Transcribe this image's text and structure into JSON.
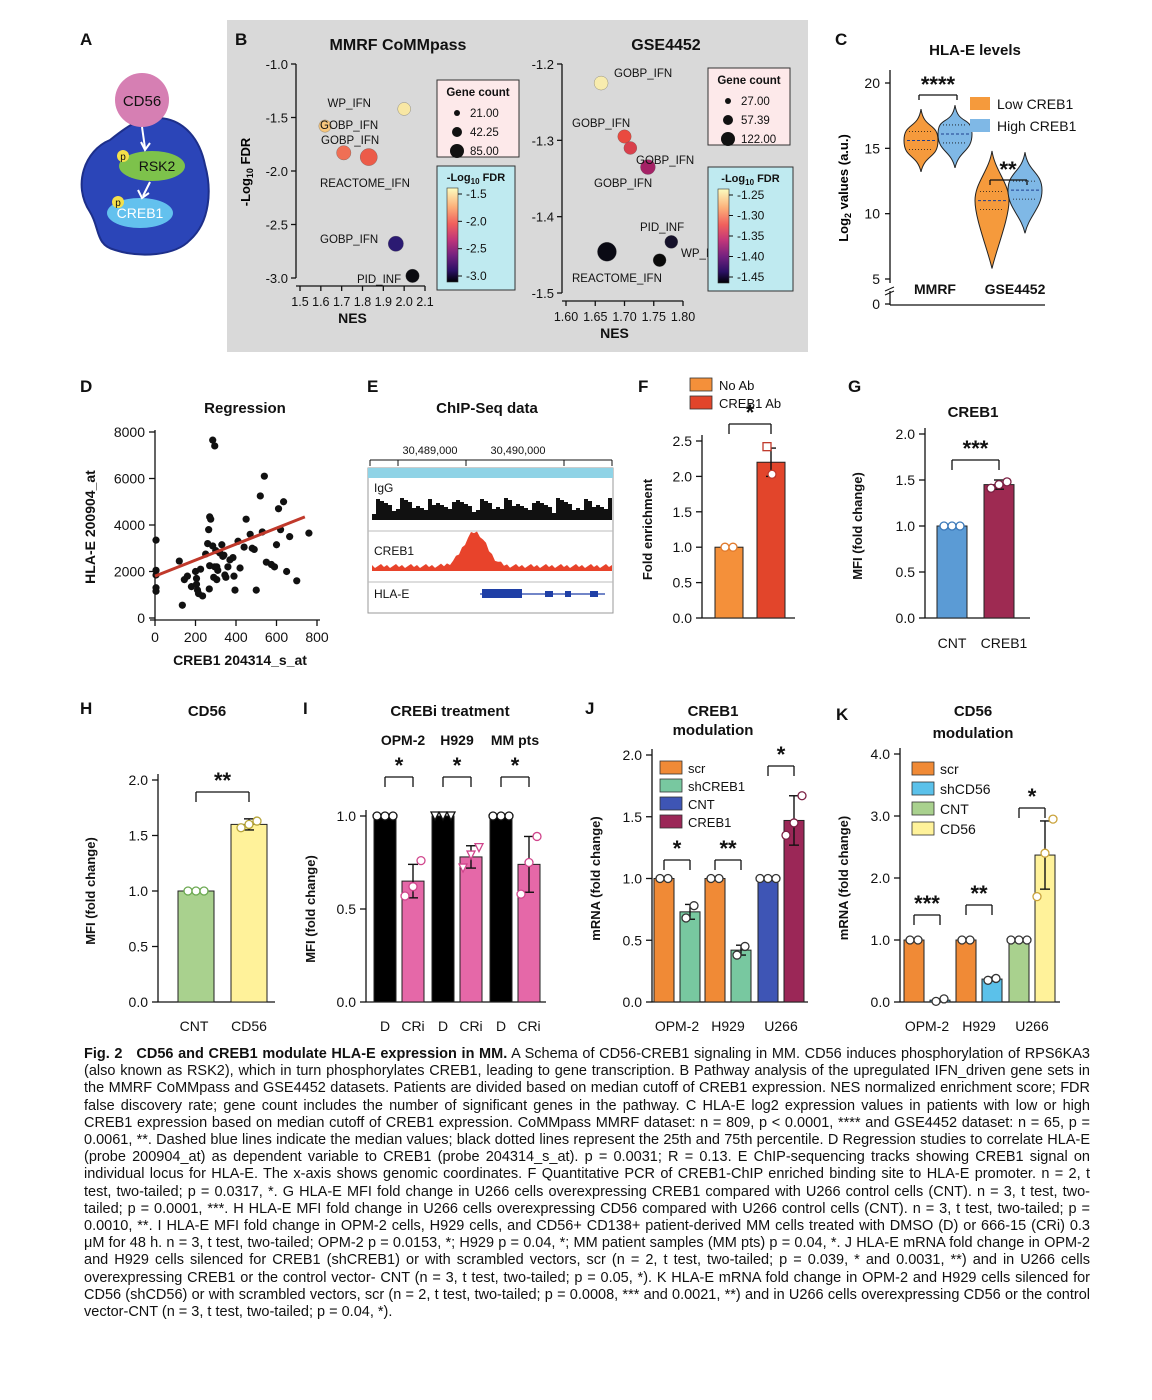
{
  "panels": {
    "A": {
      "label": "A",
      "nodes": [
        "CD56",
        "RSK2",
        "CREB1"
      ],
      "phospho": "p"
    },
    "B": {
      "label": "B",
      "left_title": "MMRF CoMMpass",
      "right_title": "GSE4452",
      "xlabel": "NES",
      "ylabel": "-Log10 FDR",
      "size_legend_title": "Gene count",
      "left_sizes": [
        "21.00",
        "42.25",
        "85.00"
      ],
      "right_sizes": [
        "27.00",
        "57.39",
        "122.00"
      ],
      "color_legend_title": "-Log10 FDR",
      "left_color_ticks": [
        "-1.5",
        "-2.0",
        "-2.5",
        "-3.0"
      ],
      "right_color_ticks": [
        "-1.25",
        "-1.30",
        "-1.35",
        "-1.40",
        "-1.45"
      ]
    },
    "C": {
      "label": "C",
      "title": "HLA-E levels"
    },
    "D": {
      "label": "D",
      "title": "Regression"
    },
    "E": {
      "label": "E",
      "title": "ChIP-Seq data",
      "coords": [
        "30,489,000",
        "30,490,000"
      ],
      "tracks": [
        "IgG",
        "CREB1",
        "HLA-E"
      ]
    },
    "F": {
      "label": "F"
    },
    "G": {
      "label": "G",
      "title": "CREB1"
    },
    "H": {
      "label": "H",
      "title": "CD56"
    },
    "I": {
      "label": "I",
      "title": "CREBi treatment"
    },
    "J": {
      "label": "J",
      "title": [
        "CREB1",
        "modulation"
      ]
    },
    "K": {
      "label": "K",
      "title": [
        "CD56",
        "modulation"
      ]
    }
  },
  "chart_data": [
    {
      "panel": "B-left",
      "type": "scatter",
      "title": "MMRF CoMMpass",
      "xlabel": "NES",
      "ylabel": "-Log10 FDR",
      "xlim": [
        1.5,
        2.1
      ],
      "ylim": [
        -3.0,
        -1.0
      ],
      "xticks": [
        "1.5",
        "1.6",
        "1.7",
        "1.8",
        "1.9",
        "2.0",
        "2.1"
      ],
      "yticks": [
        "-1.0",
        "-1.5",
        "-2.0",
        "-2.5",
        "-3.0"
      ],
      "points": [
        {
          "label": "WP_IFN",
          "x": 2.0,
          "y": -1.42,
          "size": 30,
          "fdr": -1.45,
          "color": "#f8e7a4"
        },
        {
          "label": "GOBP_IFN",
          "x": 1.62,
          "y": -1.58,
          "size": 25,
          "fdr": -1.55,
          "color": "#f7c67c"
        },
        {
          "label": "GOBP_IFN",
          "x": 1.71,
          "y": -1.83,
          "size": 45,
          "fdr": -1.8,
          "color": "#ef6f55"
        },
        {
          "label": "REACTOME_IFN",
          "x": 1.83,
          "y": -1.87,
          "size": 80,
          "fdr": -1.85,
          "color": "#ec5b49"
        },
        {
          "label": "GOBP_IFN",
          "x": 1.96,
          "y": -2.68,
          "size": 55,
          "fdr": -2.7,
          "color": "#2b1a72"
        },
        {
          "label": "PID_INF",
          "x": 2.04,
          "y": -2.98,
          "size": 35,
          "fdr": -3.0,
          "color": "#0a0a10"
        }
      ]
    },
    {
      "panel": "B-right",
      "type": "scatter",
      "title": "GSE4452",
      "xlabel": "NES",
      "ylabel": "-Log10 FDR",
      "xlim": [
        1.6,
        1.8
      ],
      "ylim": [
        -1.5,
        -1.2
      ],
      "xticks": [
        "1.60",
        "1.65",
        "1.70",
        "1.75",
        "1.80"
      ],
      "yticks": [
        "-1.2",
        "-1.3",
        "-1.4",
        "-1.5"
      ],
      "points": [
        {
          "label": "GOBP_IFN",
          "x": 1.66,
          "y": -1.225,
          "size": 40,
          "fdr": -1.22,
          "color": "#f8ecae"
        },
        {
          "label": "GOBP_IFN",
          "x": 1.7,
          "y": -1.295,
          "size": 35,
          "fdr": -1.29,
          "color": "#ea4a3f"
        },
        {
          "label": "GOBP_IFN",
          "x": 1.71,
          "y": -1.31,
          "size": 30,
          "fdr": -1.31,
          "color": "#d9404c"
        },
        {
          "label": "GOBP_IFN",
          "x": 1.74,
          "y": -1.335,
          "size": 50,
          "fdr": -1.34,
          "color": "#a52266"
        },
        {
          "label": "PID_INF",
          "x": 1.78,
          "y": -1.433,
          "size": 30,
          "fdr": -1.44,
          "color": "#15112a"
        },
        {
          "label": "WP_IFN",
          "x": 1.67,
          "y": -1.446,
          "size": 110,
          "fdr": -1.45,
          "color": "#0a0a14"
        },
        {
          "label": "REACTOME_IFN",
          "x": 1.76,
          "y": -1.457,
          "size": 30,
          "fdr": -1.45,
          "color": "#0a0a0a"
        }
      ]
    },
    {
      "panel": "C",
      "type": "violin",
      "title": "HLA-E levels",
      "ylabel": "Log2 values (a.u.)",
      "yticks": [
        "0",
        "5",
        "10",
        "15",
        "20"
      ],
      "categories": [
        "MMRF",
        "GSE4452"
      ],
      "series": [
        {
          "name": "Low CREB1",
          "color": "#f59a3c",
          "medians": [
            15.6,
            11.0
          ]
        },
        {
          "name": "High CREB1",
          "color": "#7fb8e6",
          "medians": [
            16.1,
            11.8
          ]
        }
      ],
      "annotations": [
        "****",
        "**"
      ]
    },
    {
      "panel": "D",
      "type": "scatter",
      "title": "Regression",
      "xlabel": "CREB1 204314_s_at",
      "ylabel": "HLA-E 200904_at",
      "xlim": [
        0,
        800
      ],
      "ylim": [
        0,
        8000
      ],
      "xticks": [
        "0",
        "200",
        "400",
        "600",
        "800"
      ],
      "yticks": [
        "0",
        "2000",
        "4000",
        "6000",
        "8000"
      ],
      "fit_line": {
        "x": [
          0,
          740
        ],
        "y": [
          1800,
          4350
        ]
      },
      "points": [
        [
          5,
          3350
        ],
        [
          5,
          2050
        ],
        [
          5,
          1850
        ],
        [
          5,
          1300
        ],
        [
          5,
          1150
        ],
        [
          120,
          2450
        ],
        [
          145,
          1650
        ],
        [
          160,
          1800
        ],
        [
          180,
          1350
        ],
        [
          200,
          2000
        ],
        [
          205,
          1700
        ],
        [
          205,
          1450
        ],
        [
          210,
          1200
        ],
        [
          225,
          2100
        ],
        [
          235,
          950
        ],
        [
          250,
          2750
        ],
        [
          260,
          3200
        ],
        [
          265,
          3800
        ],
        [
          268,
          1250
        ],
        [
          270,
          4350
        ],
        [
          270,
          2250
        ],
        [
          275,
          4250
        ],
        [
          285,
          3100
        ],
        [
          290,
          1750
        ],
        [
          295,
          2200
        ],
        [
          300,
          2900
        ],
        [
          305,
          1650
        ],
        [
          305,
          2200
        ],
        [
          310,
          2050
        ],
        [
          320,
          2800
        ],
        [
          330,
          3150
        ],
        [
          335,
          2650
        ],
        [
          340,
          2700
        ],
        [
          345,
          1850
        ],
        [
          350,
          1750
        ],
        [
          360,
          2200
        ],
        [
          370,
          2500
        ],
        [
          385,
          2600
        ],
        [
          390,
          1800
        ],
        [
          395,
          1200
        ],
        [
          410,
          3300
        ],
        [
          420,
          2150
        ],
        [
          440,
          3050
        ],
        [
          450,
          4250
        ],
        [
          470,
          3600
        ],
        [
          480,
          3000
        ],
        [
          490,
          2950
        ],
        [
          500,
          1200
        ],
        [
          520,
          5250
        ],
        [
          530,
          3700
        ],
        [
          540,
          6100
        ],
        [
          550,
          2400
        ],
        [
          575,
          2300
        ],
        [
          590,
          2200
        ],
        [
          600,
          3150
        ],
        [
          610,
          4700
        ],
        [
          620,
          3800
        ],
        [
          635,
          5000
        ],
        [
          650,
          2000
        ],
        [
          665,
          3500
        ],
        [
          700,
          1600
        ],
        [
          760,
          3650
        ],
        [
          135,
          550
        ],
        [
          215,
          1050
        ],
        [
          285,
          7650
        ],
        [
          295,
          7400
        ]
      ]
    },
    {
      "panel": "F",
      "type": "bar",
      "ylabel": "Fold enrichment",
      "ylim": [
        0,
        2.5
      ],
      "yticks": [
        "0.0",
        "0.5",
        "1.0",
        "1.5",
        "2.0",
        "2.5"
      ],
      "categories": [
        "No Ab",
        "CREB1 Ab"
      ],
      "values": [
        1.0,
        2.2
      ],
      "errors": [
        0.0,
        0.2
      ],
      "colors": [
        "#f4903a",
        "#e2452b"
      ],
      "points": [
        [
          1.0,
          1.0
        ],
        [
          2.42,
          2.03
        ]
      ],
      "annotations": [
        "*"
      ]
    },
    {
      "panel": "G",
      "type": "bar",
      "title": "CREB1",
      "ylabel": "MFI (fold change)",
      "ylim": [
        0,
        2.0
      ],
      "yticks": [
        "0.0",
        "0.5",
        "1.0",
        "1.5",
        "2.0"
      ],
      "categories": [
        "CNT",
        "CREB1"
      ],
      "values": [
        1.0,
        1.45
      ],
      "errors": [
        0.0,
        0.05
      ],
      "colors": [
        "#5b9bd5",
        "#9e2a52"
      ],
      "points": [
        [
          1.0,
          1.0,
          1.0
        ],
        [
          1.41,
          1.45,
          1.48
        ]
      ],
      "annotations": [
        "***"
      ]
    },
    {
      "panel": "H",
      "type": "bar",
      "title": "CD56",
      "ylabel": "MFI (fold change)",
      "ylim": [
        0,
        2.0
      ],
      "yticks": [
        "0.0",
        "0.5",
        "1.0",
        "1.5",
        "2.0"
      ],
      "categories": [
        "CNT",
        "CD56"
      ],
      "values": [
        1.0,
        1.6
      ],
      "errors": [
        0.0,
        0.05
      ],
      "colors": [
        "#a9d18e",
        "#fff29a"
      ],
      "points": [
        [
          1.0,
          1.0,
          1.0
        ],
        [
          1.57,
          1.6,
          1.63
        ]
      ],
      "annotations": [
        "**"
      ]
    },
    {
      "panel": "I",
      "type": "bar",
      "title": "CREBi treatment",
      "ylabel": "MFI (fold change)",
      "ylim": [
        0,
        1.0
      ],
      "yticks": [
        "0.0",
        "0.5",
        "1.0"
      ],
      "groups": [
        "OPM-2",
        "H929",
        "MM pts"
      ],
      "categories": [
        "D",
        "CRi",
        "D",
        "CRi",
        "D",
        "CRi"
      ],
      "values": [
        1.0,
        0.65,
        1.0,
        0.78,
        1.0,
        0.74
      ],
      "errors": [
        0.0,
        0.09,
        0.0,
        0.06,
        0.0,
        0.15
      ],
      "colors": [
        "#000000",
        "#e568a8",
        "#000000",
        "#e568a8",
        "#000000",
        "#e568a8"
      ],
      "points": [
        [
          1,
          1,
          1
        ],
        [
          0.57,
          0.62,
          0.76
        ],
        [
          1,
          1,
          1
        ],
        [
          0.72,
          0.79,
          0.83
        ],
        [
          1,
          1,
          1
        ],
        [
          0.58,
          0.75,
          0.89
        ]
      ],
      "annotations": [
        "*",
        "*",
        "*"
      ]
    },
    {
      "panel": "J",
      "type": "bar",
      "title": "CREB1 modulation",
      "ylabel": "mRNA (fold change)",
      "ylim": [
        0,
        2.0
      ],
      "yticks": [
        "0.0",
        "0.5",
        "1.0",
        "1.5",
        "2.0"
      ],
      "groups": [
        "OPM-2",
        "H929",
        "U266"
      ],
      "series": [
        {
          "name": "scr",
          "color": "#f08a36"
        },
        {
          "name": "shCREB1",
          "color": "#78c8a0"
        },
        {
          "name": "CNT",
          "color": "#3e55b5"
        },
        {
          "name": "CREB1",
          "color": "#9b2757"
        }
      ],
      "bars": [
        {
          "group": "OPM-2",
          "series": "scr",
          "value": 1.0,
          "error": 0.0
        },
        {
          "group": "OPM-2",
          "series": "shCREB1",
          "value": 0.73,
          "error": 0.06
        },
        {
          "group": "H929",
          "series": "scr",
          "value": 1.0,
          "error": 0.0
        },
        {
          "group": "H929",
          "series": "shCREB1",
          "value": 0.42,
          "error": 0.04
        },
        {
          "group": "U266",
          "series": "CNT",
          "value": 1.0,
          "error": 0.0
        },
        {
          "group": "U266",
          "series": "CREB1",
          "value": 1.47,
          "error": 0.2
        }
      ],
      "annotations": [
        "*",
        "**",
        "*"
      ]
    },
    {
      "panel": "K",
      "type": "bar",
      "title": "CD56 modulation",
      "ylabel": "mRNA (fold change)",
      "ylim": [
        0,
        4.0
      ],
      "yticks": [
        "0.0",
        "1.0",
        "2.0",
        "3.0",
        "4.0"
      ],
      "groups": [
        "OPM-2",
        "H929",
        "U266"
      ],
      "series": [
        {
          "name": "scr",
          "color": "#f08a36"
        },
        {
          "name": "shCD56",
          "color": "#5bc1ea"
        },
        {
          "name": "CNT",
          "color": "#a9d18e"
        },
        {
          "name": "CD56",
          "color": "#fff29a"
        }
      ],
      "bars": [
        {
          "group": "OPM-2",
          "series": "scr",
          "value": 1.0,
          "error": 0.0
        },
        {
          "group": "OPM-2",
          "series": "shCD56",
          "value": 0.03,
          "error": 0.02
        },
        {
          "group": "H929",
          "series": "scr",
          "value": 1.0,
          "error": 0.0
        },
        {
          "group": "H929",
          "series": "shCD56",
          "value": 0.37,
          "error": 0.03
        },
        {
          "group": "U266",
          "series": "CNT",
          "value": 1.0,
          "error": 0.0
        },
        {
          "group": "U266",
          "series": "CD56",
          "value": 2.37,
          "error": 0.55
        }
      ],
      "annotations": [
        "***",
        "**",
        "*"
      ]
    }
  ],
  "caption": {
    "fig_label": "Fig. 2",
    "title": "CD56 and CREB1 modulate HLA-E expression in MM.",
    "body": " A Schema of CD56-CREB1 signaling in MM. CD56 induces phosphorylation of RPS6KA3 (also known as RSK2), which in turn phosphorylates CREB1, leading to gene transcription. B Pathway analysis of the upregulated IFN_driven gene sets in the MMRF CoMMpass and GSE4452 datasets. Patients are divided based on median cutoff of CREB1 expression. NES normalized enrichment score; FDR false discovery rate; gene count includes the number of significant genes in the pathway. C HLA-E log2 expression values in patients with low or high CREB1 expression based on median cutoff of CREB1 expression. CoMMpass MMRF dataset: n = 809, p < 0.0001, **** and GSE4452 dataset: n = 65, p = 0.0061, **. Dashed blue lines indicate the median values; black dotted lines represent the 25th and 75th percentile. D Regression studies to correlate HLA-E (probe 200904_at) as dependent variable to CREB1 (probe 204314_s_at). p = 0.0031; R = 0.13. E ChIP-sequencing tracks showing CREB1 signal on individual locus for HLA-E. The x-axis shows genomic coordinates. F Quantitative PCR of CREB1-ChIP enriched binding site to HLA-E promoter. n = 2, t test, two-tailed; p = 0.0317, *. G HLA-E MFI fold change in U266 cells overexpressing CREB1 compared with U266 control cells (CNT). n = 3, t test, two-tailed; p = 0.0001, ***. H HLA-E MFI fold change in U266 cells overexpressing CD56 compared with U266 control cells (CNT). n = 3, t test, two-tailed; p = 0.0010, **. I HLA-E MFI fold change in OPM-2 cells, H929 cells, and CD56+ CD138+ patient-derived MM cells treated with DMSO (D) or 666-15 (CRi) 0.3 μM for 48 h. n = 3, t test, two-tailed; OPM-2 p = 0.0153, *; H929 p = 0.04, *; MM patient samples (MM pts) p = 0.04, *. J HLA-E mRNA fold change in OPM-2 and H929 cells silenced for CREB1 (shCREB1) or with scrambled vectors, scr (n = 2, t test, two-tailed; p = 0.039, * and 0.0031, **) and in U266 cells overexpressing CREB1 or the control vector- CNT (n = 3, t test, two-tailed; p = 0.05, *). K HLA-E mRNA fold change in OPM-2 and H929 cells silenced for CD56 (shCD56) or with scrambled vectors, scr (n = 2, t test, two-tailed; p = 0.0008, *** and 0.0021, **) and in U266 cells overexpressing CD56 or the control vector-CNT (n = 3, t test, two-tailed; p = 0.04, *)."
  }
}
